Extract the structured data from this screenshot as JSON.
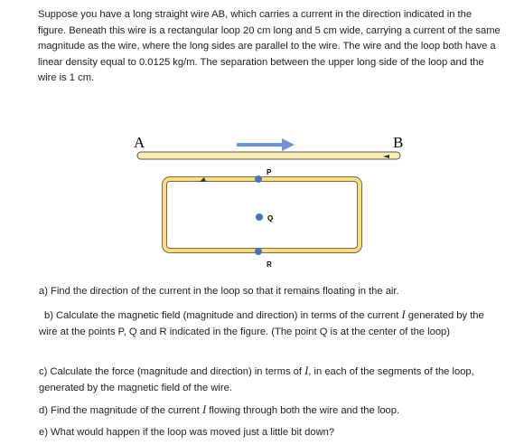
{
  "problem": {
    "intro": "Suppose you have a long straight wire AB, which carries a current in the direction indicated in the figure. Beneath this wire is a rectangular loop 20 cm long and 5 cm wide, carrying a current of the same magnitude as the wire, where the long sides are parallel to the wire. The wire and the loop both have a linear density equal to 0.0125 kg/m. The separation between the upper long side of the loop and the wire is 1 cm.",
    "figure": {
      "wire_start": "A",
      "wire_end": "B",
      "point_p": "P",
      "point_q": "Q",
      "point_r": "R"
    },
    "questions": {
      "a": [
        "a) Find the direction of the current in the loop so that it remains floating in the air."
      ],
      "b": [
        "b) Calculate the magnetic field (magnitude and direction) in terms of the current ",
        "I",
        " generated by the wire at the points P, Q and R indicated in the figure. (The point Q is at the center of the loop)"
      ],
      "c": [
        "c) Calculate the force (magnitude and direction) in terms of ",
        "I",
        ", in each of the segments of the loop, generated by the magnetic field of the wire."
      ],
      "d": [
        "d) Find the magnitude of the current ",
        "I",
        " flowing through both the wire and the loop."
      ],
      "e": [
        "e) What would happen if the loop was moved just a little bit down?"
      ]
    }
  }
}
